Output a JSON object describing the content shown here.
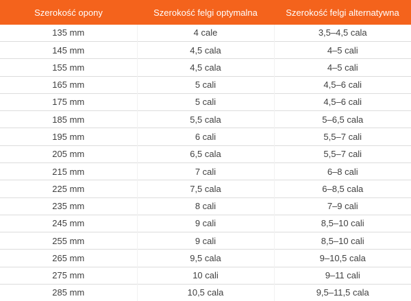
{
  "colors": {
    "header_background": "#f4631c",
    "header_text": "#ffffff",
    "cell_text": "#3f3f3f",
    "row_separator": "#dcdcdc",
    "column_separator": "#f1f1f1",
    "row_background": "#ffffff"
  },
  "chart_data": {
    "type": "table",
    "columns": [
      "Szerokość opony",
      "Szerokość felgi optymalna",
      "Szerokość felgi alternatywna"
    ],
    "rows": [
      [
        "135 mm",
        "4 cale",
        "3,5–4,5 cala"
      ],
      [
        "145 mm",
        "4,5 cala",
        "4–5 cali"
      ],
      [
        "155 mm",
        "4,5 cala",
        "4–5 cali"
      ],
      [
        "165 mm",
        "5 cali",
        "4,5–6 cali"
      ],
      [
        "175 mm",
        "5 cali",
        "4,5–6 cali"
      ],
      [
        "185 mm",
        "5,5 cala",
        "5–6,5 cala"
      ],
      [
        "195 mm",
        "6 cali",
        "5,5–7 cali"
      ],
      [
        "205 mm",
        "6,5 cala",
        "5,5–7 cali"
      ],
      [
        "215 mm",
        "7 cali",
        "6–8 cali"
      ],
      [
        "225 mm",
        "7,5 cala",
        "6–8,5 cala"
      ],
      [
        "235 mm",
        "8 cali",
        "7–9 cali"
      ],
      [
        "245 mm",
        "9 cali",
        "8,5–10 cali"
      ],
      [
        "255 mm",
        "9 cali",
        "8,5–10 cali"
      ],
      [
        "265 mm",
        "9,5 cala",
        "9–10,5 cala"
      ],
      [
        "275 mm",
        "10 cali",
        "9–11 cali"
      ],
      [
        "285 mm",
        "10,5 cala",
        "9,5–11,5 cala"
      ]
    ]
  }
}
